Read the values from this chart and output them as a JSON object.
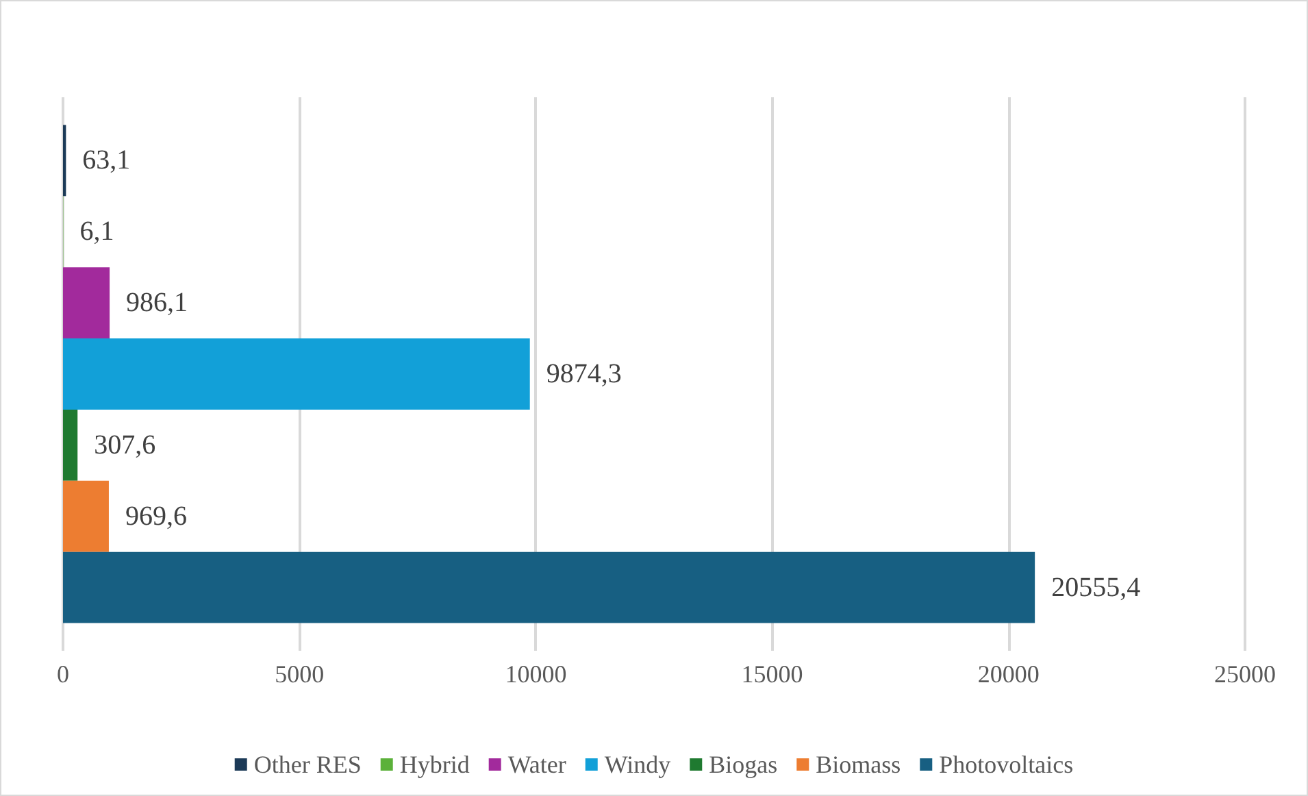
{
  "chart_data": {
    "type": "bar",
    "orientation": "horizontal",
    "categories": [
      null
    ],
    "series": [
      {
        "name": "Other RES",
        "color": "#1c3a57",
        "values": [
          63.1
        ],
        "value_labels": [
          "63,1"
        ]
      },
      {
        "name": "Hybrid",
        "color": "#5bb13a",
        "values": [
          6.1
        ],
        "value_labels": [
          "6,1"
        ]
      },
      {
        "name": "Water",
        "color": "#a22a9c",
        "values": [
          986.1
        ],
        "value_labels": [
          "986,1"
        ]
      },
      {
        "name": "Windy",
        "color": "#12a0d8",
        "values": [
          9874.3
        ],
        "value_labels": [
          "9874,3"
        ]
      },
      {
        "name": "Biogas",
        "color": "#1f7a30",
        "values": [
          307.6
        ],
        "value_labels": [
          "307,6"
        ]
      },
      {
        "name": "Biomass",
        "color": "#ed7d31",
        "values": [
          969.6
        ],
        "value_labels": [
          "969,6"
        ]
      },
      {
        "name": "Photovoltaics",
        "color": "#175f82",
        "values": [
          20555.4
        ],
        "value_labels": [
          "20555,4"
        ]
      }
    ],
    "xlim": [
      0,
      25000
    ],
    "xticks": [
      0,
      5000,
      10000,
      15000,
      20000,
      25000
    ],
    "grid": "x",
    "legend": "bottom"
  }
}
